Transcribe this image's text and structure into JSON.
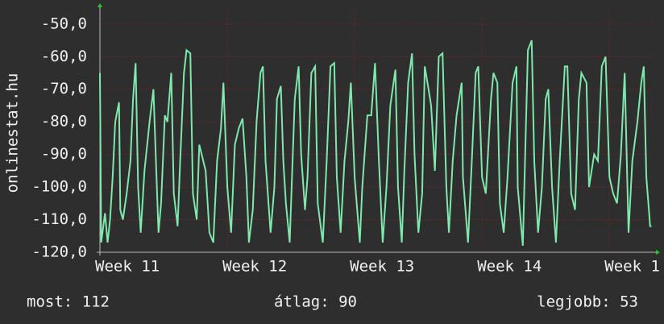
{
  "chart_data": {
    "type": "line",
    "y_label": "onlinestat.hu",
    "color": "#7ee8ad",
    "grid": true,
    "xlim": [
      11,
      15.34
    ],
    "ylim": [
      -120,
      -45.6
    ],
    "xticks": [
      {
        "value": 11,
        "label": "Week 11"
      },
      {
        "value": 12,
        "label": "Week 12"
      },
      {
        "value": 13,
        "label": "Week 13"
      },
      {
        "value": 14,
        "label": "Week 14"
      },
      {
        "value": 15,
        "label": "Week 1"
      }
    ],
    "yticks": [
      {
        "value": -50,
        "label": "-50,0"
      },
      {
        "value": -60,
        "label": "-60,0"
      },
      {
        "value": -70,
        "label": "-70,0"
      },
      {
        "value": -80,
        "label": "-80,0"
      },
      {
        "value": -90,
        "label": "-90,0"
      },
      {
        "value": -100,
        "label": "-100,0"
      },
      {
        "value": -110,
        "label": "-110,0"
      },
      {
        "value": -120,
        "label": "-120,0"
      }
    ],
    "x": [
      11.0,
      11.01,
      11.04,
      11.06,
      11.08,
      11.1,
      11.12,
      11.15,
      11.16,
      11.18,
      11.21,
      11.24,
      11.26,
      11.28,
      11.3,
      11.32,
      11.35,
      11.39,
      11.42,
      11.44,
      11.46,
      11.48,
      11.51,
      11.53,
      11.56,
      11.58,
      11.61,
      11.63,
      11.66,
      11.68,
      11.71,
      11.73,
      11.76,
      11.78,
      11.83,
      11.86,
      11.89,
      11.92,
      11.95,
      11.97,
      12.0,
      12.03,
      12.06,
      12.09,
      12.12,
      12.15,
      12.17,
      12.2,
      12.23,
      12.26,
      12.28,
      12.3,
      12.34,
      12.37,
      12.39,
      12.42,
      12.44,
      12.46,
      12.49,
      12.53,
      12.56,
      12.58,
      12.61,
      12.63,
      12.66,
      12.69,
      12.71,
      12.75,
      12.78,
      12.81,
      12.84,
      12.86,
      12.89,
      12.92,
      12.95,
      12.97,
      13.0,
      13.04,
      13.06,
      13.1,
      13.13,
      13.16,
      13.19,
      13.22,
      13.25,
      13.28,
      13.32,
      13.34,
      13.37,
      13.39,
      13.42,
      13.45,
      13.47,
      13.5,
      13.53,
      13.55,
      13.58,
      13.6,
      13.63,
      13.66,
      13.69,
      13.72,
      13.74,
      13.77,
      13.8,
      13.84,
      13.85,
      13.89,
      13.92,
      13.95,
      13.97,
      14.0,
      14.03,
      14.07,
      14.09,
      14.12,
      14.14,
      14.17,
      14.2,
      14.24,
      14.27,
      14.28,
      14.32,
      14.36,
      14.39,
      14.41,
      14.44,
      14.47,
      14.5,
      14.52,
      14.55,
      14.58,
      14.61,
      14.65,
      14.67,
      14.7,
      14.73,
      14.76,
      14.78,
      14.82,
      14.84,
      14.88,
      14.91,
      14.94,
      14.97,
      15.0,
      15.03,
      15.06,
      15.09,
      15.12,
      15.15,
      15.18,
      15.22,
      15.25,
      15.27,
      15.29,
      15.32,
      15.33
    ],
    "values": [
      -65,
      -117,
      -108,
      -117,
      -110,
      -97,
      -80,
      -74,
      -107,
      -110,
      -102,
      -92,
      -73,
      -62,
      -100,
      -114,
      -95,
      -80,
      -70,
      -92,
      -114,
      -105,
      -78,
      -80,
      -65,
      -102,
      -112,
      -92,
      -65,
      -58,
      -59,
      -102,
      -110,
      -87,
      -95,
      -114,
      -117,
      -92,
      -82,
      -68,
      -100,
      -114,
      -87,
      -82,
      -79,
      -97,
      -117,
      -107,
      -80,
      -65,
      -63,
      -92,
      -114,
      -100,
      -73,
      -69,
      -92,
      -105,
      -117,
      -73,
      -63,
      -90,
      -107,
      -97,
      -65,
      -63,
      -105,
      -117,
      -92,
      -63,
      -62,
      -97,
      -114,
      -92,
      -80,
      -68,
      -97,
      -117,
      -100,
      -78,
      -78,
      -62,
      -92,
      -117,
      -100,
      -75,
      -64,
      -100,
      -117,
      -95,
      -68,
      -59,
      -90,
      -114,
      -102,
      -63,
      -70,
      -75,
      -95,
      -60,
      -59,
      -100,
      -114,
      -92,
      -78,
      -68,
      -97,
      -117,
      -92,
      -65,
      -63,
      -97,
      -102,
      -73,
      -65,
      -68,
      -105,
      -114,
      -97,
      -68,
      -63,
      -100,
      -118,
      -58,
      -55,
      -92,
      -114,
      -100,
      -73,
      -70,
      -100,
      -117,
      -92,
      -63,
      -63,
      -102,
      -107,
      -73,
      -65,
      -68,
      -100,
      -90,
      -92,
      -63,
      -60,
      -97,
      -102,
      -105,
      -90,
      -65,
      -114,
      -92,
      -80,
      -68,
      -63,
      -97,
      -112,
      -112
    ]
  },
  "footer": [
    "most: 112",
    "átlag: 90",
    "legjobb: 53"
  ]
}
